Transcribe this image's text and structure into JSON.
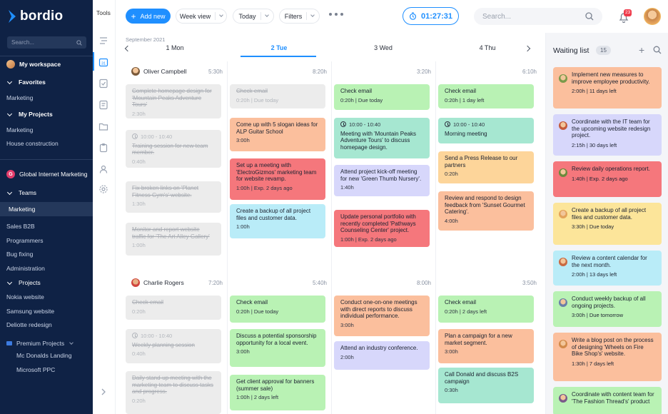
{
  "brand": {
    "name": "bordio",
    "logo_color": "#1f8fff"
  },
  "sidebar": {
    "search_placeholder": "Search...",
    "my_workspace": "My workspace",
    "favorites": "Favorites",
    "fav_items": [
      "Marketing"
    ],
    "my_projects": "My Projects",
    "project_items": [
      "Marketing",
      "House construction"
    ],
    "org": {
      "initial": "G",
      "name": "Global Internet Marketing"
    },
    "teams": "Teams",
    "team_active": "Marketing",
    "team_items": [
      "Sales B2B",
      "Programmers",
      "Bug fixing",
      "Administration"
    ],
    "projects": "Projects",
    "org_projects": [
      "Nokia website",
      "Samsung website",
      "Deliotte redesign"
    ],
    "premium": "Premium Projects",
    "premium_items": [
      "Mc Donalds Landing",
      "Microsoft PPC"
    ]
  },
  "tools": {
    "title": "Tools",
    "icons": [
      "timeline-icon",
      "calendar-icon",
      "checklist-icon",
      "notes-icon",
      "folder-icon",
      "clipboard-icon",
      "user-icon",
      "settings-icon"
    ]
  },
  "topbar": {
    "add_new": "Add new",
    "view": "Week view",
    "today": "Today",
    "filters": "Filters",
    "timer": "01:27:31",
    "search_placeholder": "Search...",
    "notifications": "23"
  },
  "calendar": {
    "month": "September 2021",
    "days": [
      "1 Mon",
      "2 Tue",
      "3 Wed",
      "4 Thu"
    ],
    "active_day": "2 Tue",
    "people": [
      {
        "name": "Oliver Campbell",
        "hours": [
          "5:30h",
          "8:20h",
          "3:20h",
          "6:10h"
        ],
        "columns": [
          [
            {
              "title": "Complete homepage design for 'Mountain Peaks Adventure Tours'",
              "meta": "2:30h",
              "color": "done"
            },
            {
              "time": "10:00 - 10:40",
              "title": "Training session for new team member.",
              "meta": "0:40h",
              "color": "done"
            },
            {
              "title": "Fix broken links on 'Planet Fitness Gym's' website.",
              "meta": "1:30h",
              "color": "done"
            },
            {
              "title": "Monitor and report website traffic for 'The Art Alley Gallery'",
              "meta": "1:00h",
              "color": "done"
            }
          ],
          [
            {
              "title": "Check email",
              "meta": "0:20h | Due today",
              "color": "done"
            },
            {
              "title": "Come up with 5 slogan ideas for ALP Guitar School",
              "meta": "3:00h",
              "color": "salmon"
            },
            {
              "title": "Set up a meeting with 'ElectroGizmos' marketing team for website revamp.",
              "meta": "1:00h | Exp. 2 days ago",
              "color": "red"
            },
            {
              "title": "Create a backup of all project files and customer data.",
              "meta": "1:00h",
              "color": "cyan"
            }
          ],
          [
            {
              "title": "Check email",
              "meta": "0:20h | Due today",
              "color": "green"
            },
            {
              "time": "10:00 - 10:40",
              "title": "Meeting with 'Mountain Peaks Adventure Tours' to discuss homepage design.",
              "meta": "",
              "color": "teal"
            },
            {
              "title": "Attend project kick-off meeting for new 'Green Thumb Nursery'.",
              "meta": "1:40h",
              "color": "lav"
            },
            {
              "title": "Update personal portfolio with recently completed 'Pathways Counseling Center' project.",
              "meta": "1:00h | Exp. 2 days ago",
              "color": "red"
            }
          ],
          [
            {
              "title": "Check email",
              "meta": "0:20h | 1 day left",
              "color": "green"
            },
            {
              "time": "10:00 - 10:40",
              "title": "Morning meeting",
              "meta": "",
              "color": "teal"
            },
            {
              "title": "Send a Press Release to our partners",
              "meta": "0:20h",
              "color": "orange"
            },
            {
              "title": "Review and respond to design feedback from 'Sunset Gourmet Catering'.",
              "meta": "4:00h",
              "color": "salmon"
            }
          ]
        ]
      },
      {
        "name": "Charlie Rogers",
        "hours": [
          "7:20h",
          "5:40h",
          "8:00h",
          "3:50h"
        ],
        "columns": [
          [
            {
              "title": "Check email",
              "meta": "0:20h",
              "color": "done"
            },
            {
              "time": "10:00 - 10:40",
              "title": "Weekly planning session",
              "meta": "0:40h",
              "color": "done"
            },
            {
              "title": "Daily stand-up meeting with the marketing team to discuss tasks and progress.",
              "meta": "0:20h",
              "color": "done"
            }
          ],
          [
            {
              "title": "Check email",
              "meta": "0:20h | Due today",
              "color": "green"
            },
            {
              "title": "Discuss a potential sponsorship opportunity for a local event.",
              "meta": "3:00h",
              "color": "green"
            },
            {
              "title": "Get client approval for banners (summer sale)",
              "meta": "1:00h | 2 days left",
              "color": "green"
            }
          ],
          [
            {
              "title": "Conduct one-on-one meetings with direct reports to discuss individual performance.",
              "meta": "3:00h",
              "color": "salmon"
            },
            {
              "title": "Attend an industry conference.",
              "meta": "2:00h",
              "color": "lav"
            }
          ],
          [
            {
              "title": "Check email",
              "meta": "0:20h | 2 days left",
              "color": "green"
            },
            {
              "title": "Plan a campaign for a new market segment.",
              "meta": "3:00h",
              "color": "salmon"
            },
            {
              "title": "Call Donald and discuss B2S campaign",
              "meta": "0:30h",
              "color": "teal"
            }
          ]
        ]
      }
    ]
  },
  "waiting_list": {
    "title": "Waiting list",
    "count": "15",
    "items": [
      {
        "title": "Implement new measures to improve employee productivity.",
        "meta": "2:00h | 11 days left",
        "color": "salmon"
      },
      {
        "title": "Coordinate with the IT team for the upcoming website redesign project.",
        "meta": "2:15h | 30 days left",
        "color": "lav"
      },
      {
        "title": "Review daily operations report.",
        "meta": "1:40h | Exp. 2 days ago",
        "color": "red"
      },
      {
        "title": "Create a backup of all project files and customer data.",
        "meta": "3:30h | Due today",
        "color": "yellow"
      },
      {
        "title": "Review a content calendar for the next month.",
        "meta": "2:00h | 13 days left",
        "color": "cyan"
      },
      {
        "title": "Conduct weekly backup of all ongoing projects.",
        "meta": "3:00h | Due tomorrow",
        "color": "green"
      },
      {
        "title": "Write a blog post on the process of designing 'Wheels on Fire Bike Shop's' website.",
        "meta": "1:30h | 7 days left",
        "color": "salmon"
      },
      {
        "title": "Coordinate with content team for 'The Fashion Thread's' product",
        "meta": "",
        "color": "green"
      }
    ]
  }
}
